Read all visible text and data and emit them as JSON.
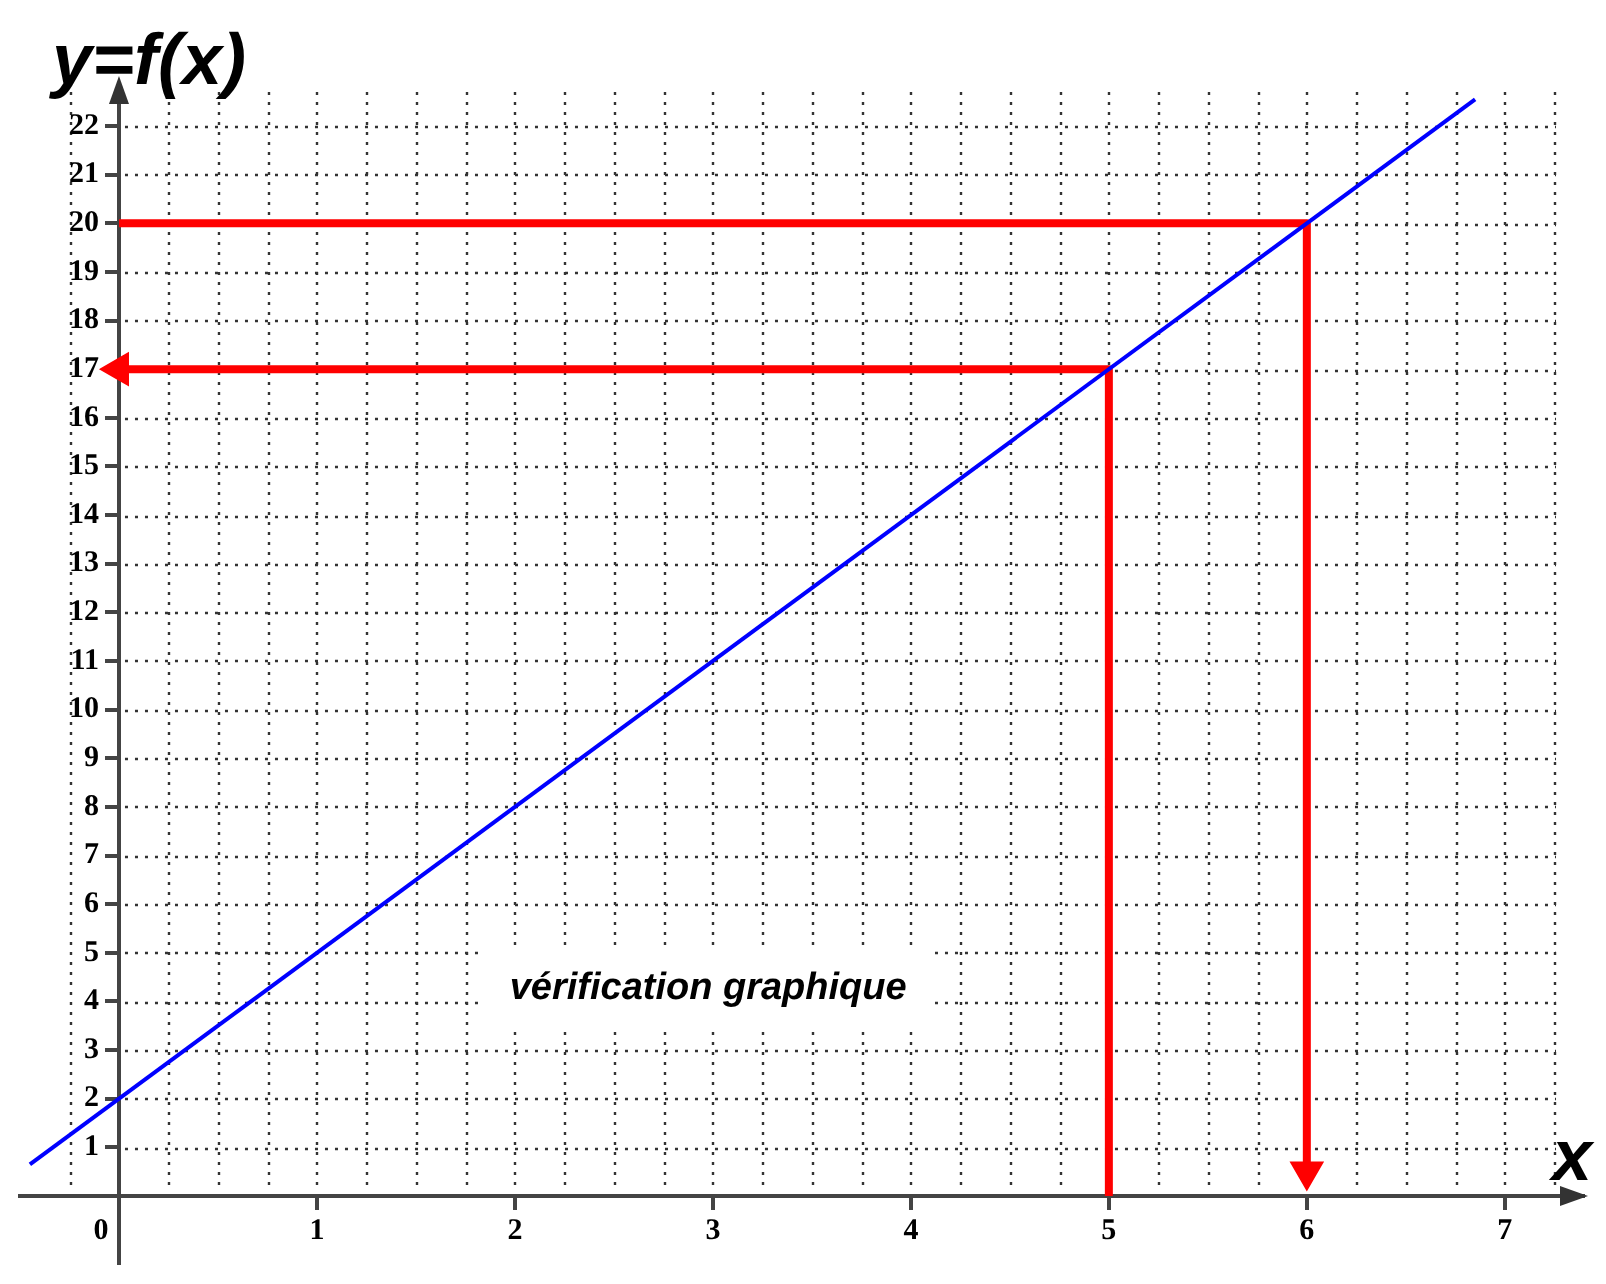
{
  "chart_data": {
    "type": "line",
    "xlabel": "x",
    "ylabel": "y=f(x)",
    "annotations": [
      "vérification graphique"
    ],
    "xlim": [
      -0.5,
      7.4
    ],
    "ylim": [
      -1.4,
      22.7
    ],
    "xticks": [
      {
        "value": -0.25,
        "label": null
      },
      0,
      {
        "value": 0.25,
        "label": null
      },
      {
        "value": 0.5,
        "label": null
      },
      {
        "value": 0.75,
        "label": null
      },
      1,
      {
        "value": 1.25,
        "label": null
      },
      {
        "value": 1.5,
        "label": null
      },
      {
        "value": 1.75,
        "label": null
      },
      2,
      {
        "value": 2.25,
        "label": null
      },
      {
        "value": 2.5,
        "label": null
      },
      {
        "value": 2.75,
        "label": null
      },
      3,
      {
        "value": 3.25,
        "label": null
      },
      {
        "value": 3.5,
        "label": null
      },
      {
        "value": 3.75,
        "label": null
      },
      4,
      {
        "value": 4.25,
        "label": null
      },
      {
        "value": 4.5,
        "label": null
      },
      {
        "value": 4.75,
        "label": null
      },
      5,
      {
        "value": 5.25,
        "label": null
      },
      {
        "value": 5.5,
        "label": null
      },
      {
        "value": 5.75,
        "label": null
      },
      6,
      {
        "value": 6.25,
        "label": null
      },
      {
        "value": 6.5,
        "label": null
      },
      {
        "value": 6.75,
        "label": null
      },
      7,
      {
        "value": 7.25,
        "label": null
      }
    ],
    "yticks": [
      1,
      2,
      3,
      4,
      5,
      6,
      7,
      8,
      9,
      10,
      11,
      12,
      13,
      14,
      15,
      16,
      17,
      18,
      19,
      20,
      21,
      22
    ],
    "grid": true,
    "marker": "none",
    "line_style": "solid",
    "series": [
      {
        "color": "#0000ff",
        "x": [
          -0.45,
          6.85
        ],
        "values": [
          0.65,
          22.55
        ]
      },
      {
        "color": "#ff0000",
        "x": [
          5,
          5,
          0
        ],
        "values": [
          0,
          17,
          17
        ]
      },
      {
        "color": "#ff0000",
        "x": [
          0,
          6,
          6
        ],
        "values": [
          20,
          20,
          0.5
        ]
      }
    ]
  }
}
